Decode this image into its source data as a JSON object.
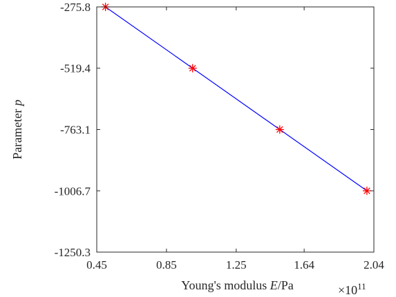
{
  "chart_data": {
    "type": "line",
    "title": "",
    "xlabel_parts": [
      "Young's modulus ",
      "E",
      "/Pa"
    ],
    "ylabel_parts": [
      "Parameter ",
      "p"
    ],
    "x_multiplier": "×10",
    "x_multiplier_exponent": "11",
    "xlim": [
      0.45,
      2.04
    ],
    "ylim": [
      -1250.3,
      -275.8
    ],
    "x_ticks": [
      0.45,
      0.85,
      1.25,
      1.64,
      2.04
    ],
    "x_tick_labels": [
      "0.45",
      "0.85",
      "1.25",
      "1.64",
      "2.04"
    ],
    "y_ticks": [
      -275.8,
      -519.4,
      -763.1,
      -1006.7,
      -1250.3
    ],
    "y_tick_labels": [
      "-275.8",
      "-519.4",
      "-763.1",
      "-1006.7",
      "-1250.3"
    ],
    "grid": false,
    "legend": "none",
    "series": [
      {
        "x": [
          0.5,
          1.0,
          1.5,
          2.0
        ],
        "y": [
          -275.8,
          -519.4,
          -763.1,
          -1006.7
        ],
        "line_color": "#0000ff",
        "marker": "asterisk",
        "marker_color": "#ff0000"
      }
    ]
  }
}
